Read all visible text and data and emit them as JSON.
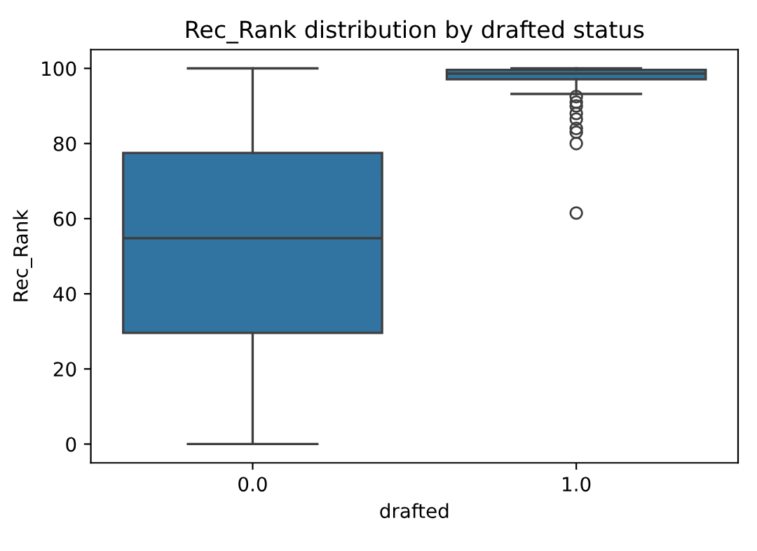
{
  "chart_data": {
    "type": "box",
    "title": "Rec_Rank distribution by drafted status",
    "xlabel": "drafted",
    "ylabel": "Rec_Rank",
    "categories": [
      "0.0",
      "1.0"
    ],
    "color": "#3274a1",
    "boxes": [
      {
        "low": 0,
        "q1": 29.6,
        "median": 54.8,
        "q3": 77.5,
        "high": 100
      },
      {
        "low": 93.2,
        "q1": 97.1,
        "median": 98.6,
        "q3": 99.6,
        "high": 100,
        "outliers": [
          92.5,
          91,
          90,
          88,
          86.5,
          84,
          83,
          80,
          61.5
        ]
      }
    ],
    "ylim": [
      -5,
      105
    ],
    "yticks": [
      0,
      20,
      40,
      60,
      80,
      100
    ],
    "grid": false
  }
}
